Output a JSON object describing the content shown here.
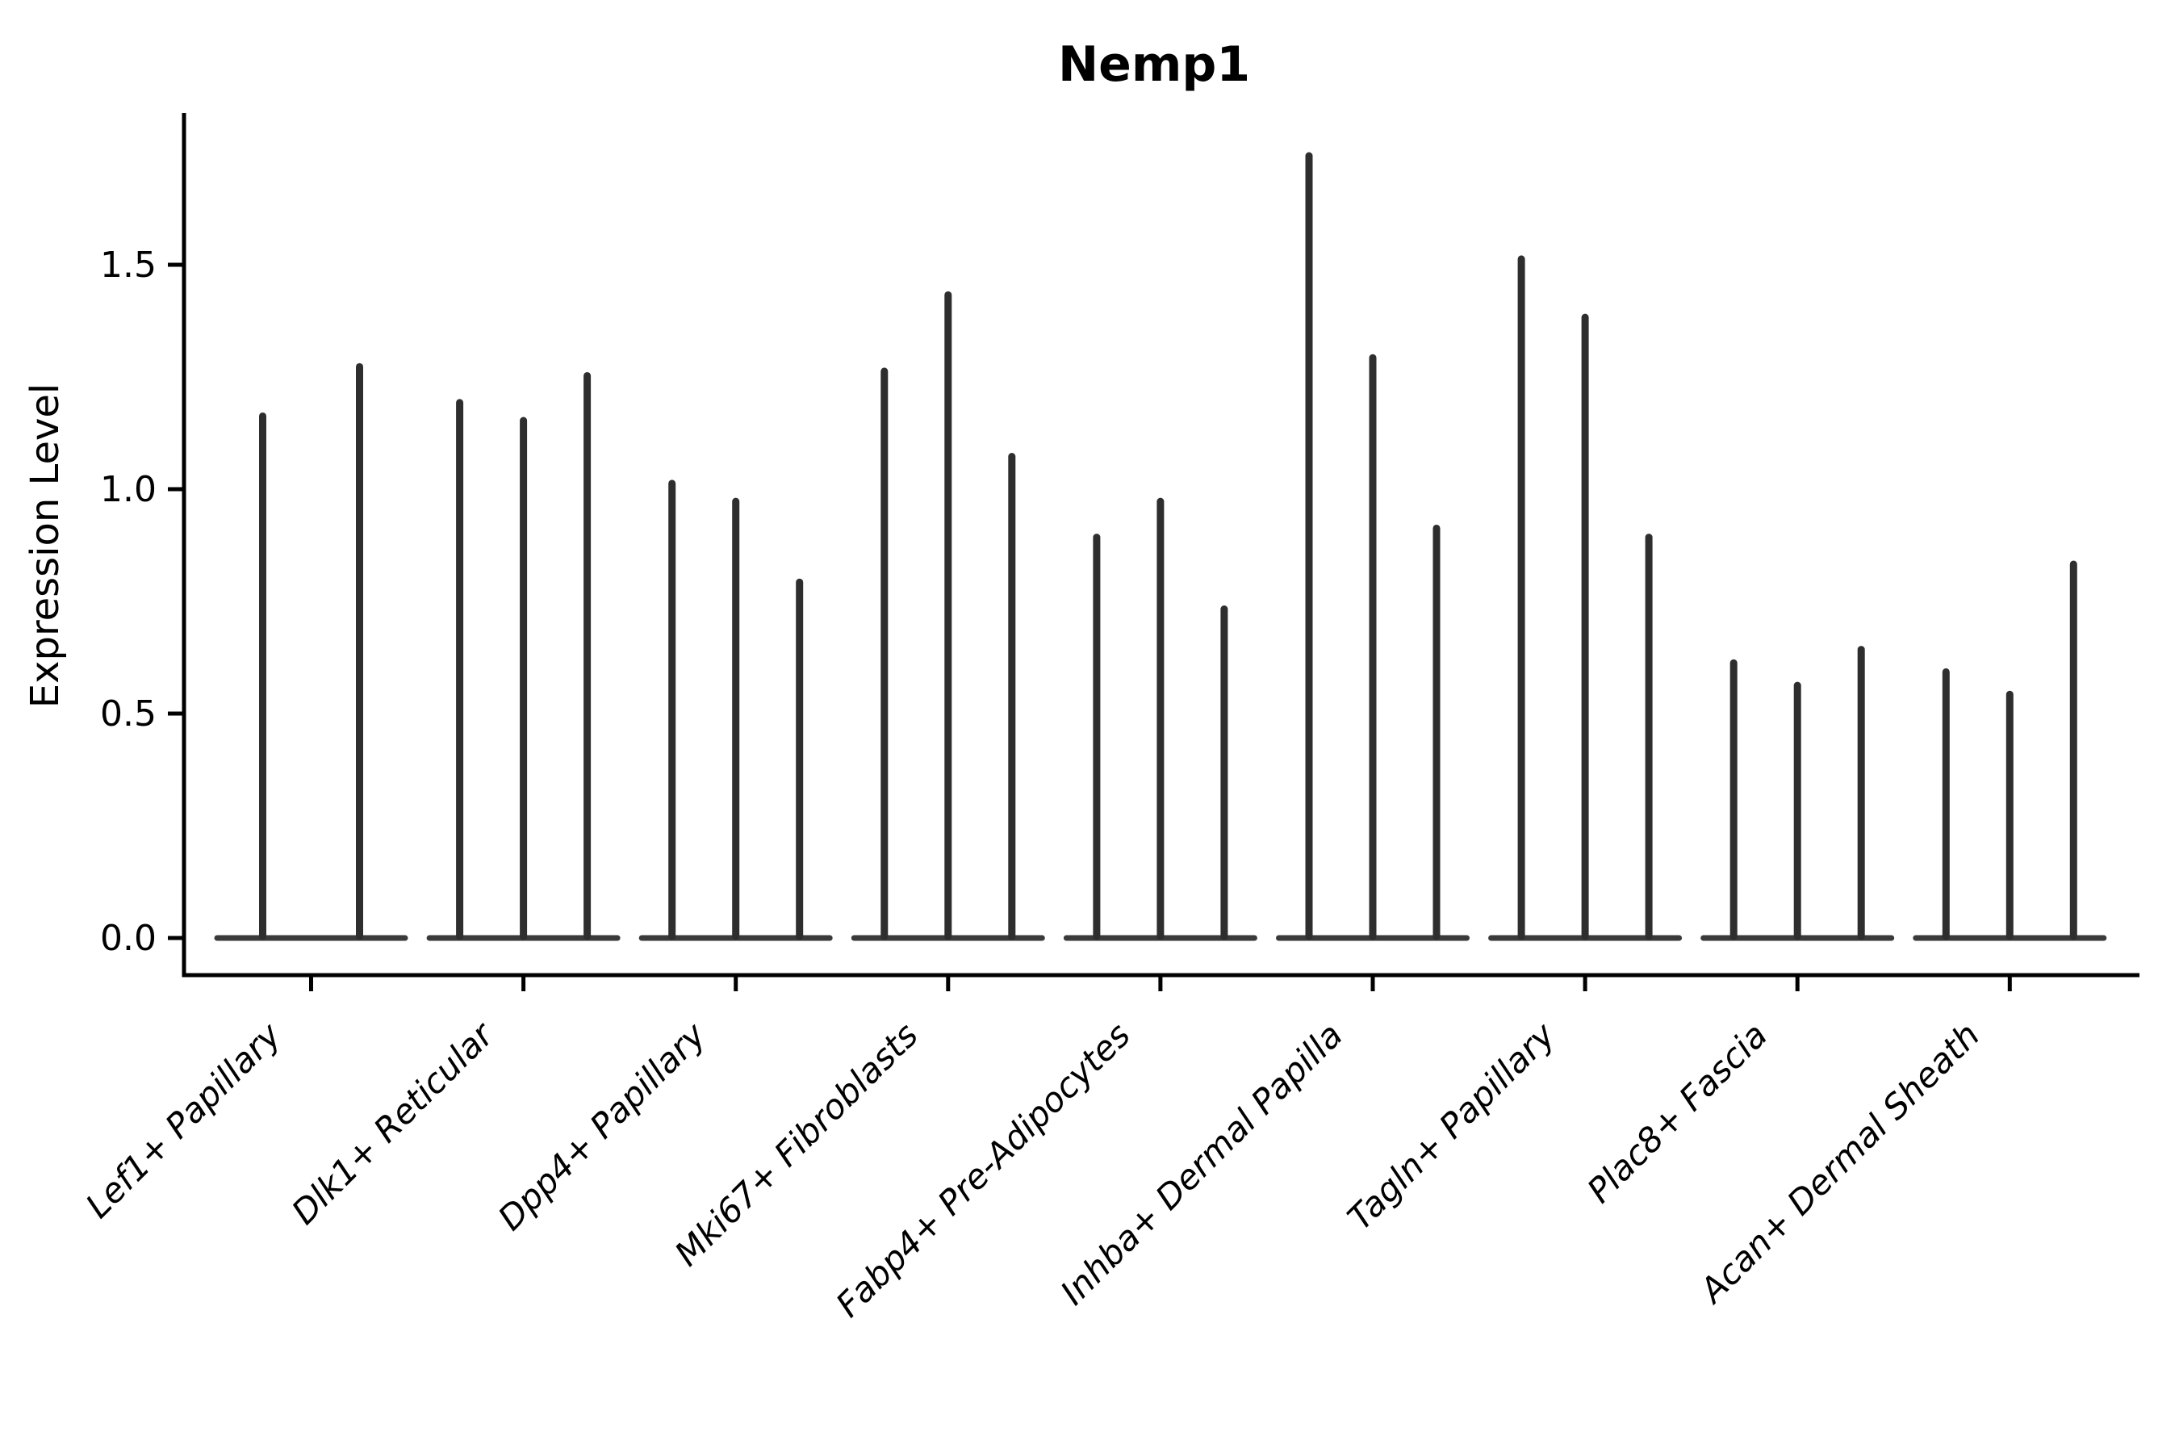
{
  "chart_data": {
    "type": "violin",
    "title": "Nemp1",
    "ylabel": "Expression Level",
    "xlabel": "",
    "yticks": [
      0.0,
      0.5,
      1.0,
      1.5
    ],
    "ylim": [
      0,
      1.84
    ],
    "grid": false,
    "legend_position": "none",
    "description": "Violin plot of Nemp1 expression; each group shows 2-3 thin zero-inflated violins (flat base at 0 with a narrow tail up to the max expression value).",
    "categories": [
      "Lef1+ Papillary",
      "Dlk1+ Reticular",
      "Dpp4+ Papillary",
      "Mki67+ Fibroblasts",
      "Fabp4+ Pre-Adipocytes",
      "Inhba+ Dermal Papilla",
      "Tagln+ Papillary",
      "Plac8+ Fascia",
      "Acan+ Dermal Sheath"
    ],
    "groups": [
      {
        "label": "Lef1+ Papillary",
        "violin_max": [
          1.17,
          1.28
        ]
      },
      {
        "label": "Dlk1+ Reticular",
        "violin_max": [
          1.2,
          1.16,
          1.26
        ]
      },
      {
        "label": "Dpp4+ Papillary",
        "violin_max": [
          1.02,
          0.98,
          0.8
        ]
      },
      {
        "label": "Mki67+ Fibroblasts",
        "violin_max": [
          1.27,
          1.44,
          1.08
        ]
      },
      {
        "label": "Fabp4+ Pre-Adipocytes",
        "violin_max": [
          0.9,
          0.98,
          0.74
        ]
      },
      {
        "label": "Inhba+ Dermal Papilla",
        "violin_max": [
          1.75,
          1.3,
          0.92
        ]
      },
      {
        "label": "Tagln+ Papillary",
        "violin_max": [
          1.52,
          1.39,
          0.9
        ]
      },
      {
        "label": "Plac8+ Fascia",
        "violin_max": [
          0.62,
          0.57,
          0.65
        ]
      },
      {
        "label": "Acan+ Dermal Sheath",
        "violin_max": [
          0.6,
          0.55,
          0.84
        ]
      }
    ],
    "colors": {
      "violin": "#2e2e2e",
      "baseline_bar": "#3a3a3a",
      "axis": "#000000",
      "text": "#000000",
      "background": "#ffffff"
    }
  }
}
